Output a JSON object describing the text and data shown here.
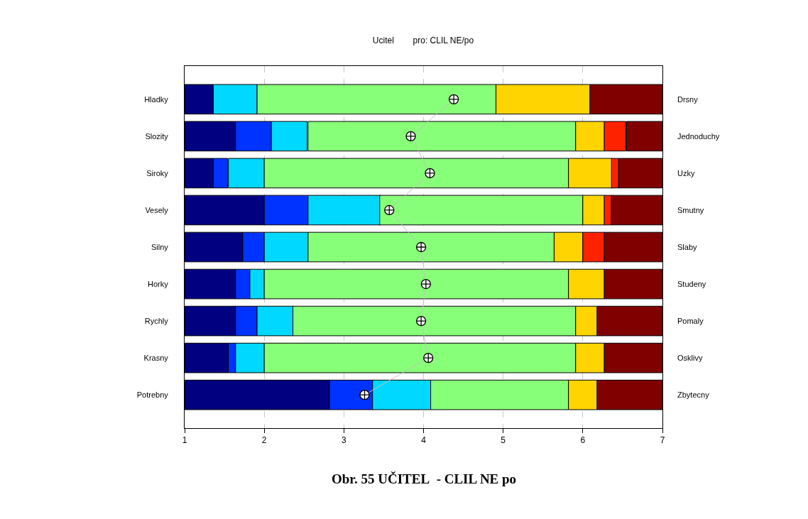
{
  "chart_data": {
    "type": "bar",
    "orientation": "horizontal",
    "title": "Ucitel        pro: CLIL NE/po",
    "categories": [
      "Hladky",
      "Slozity",
      "Siroky",
      "Vesely",
      "Silny",
      "Horky",
      "Rychly",
      "Krasny",
      "Potrebny"
    ],
    "y2_categories": [
      "Drsny",
      "Jednoduchy",
      "Uzky",
      "Smutny",
      "Slaby",
      "Studeny",
      "Pomaly",
      "Osklivy",
      "Zbytecny"
    ],
    "series": [
      {
        "color": "#000080",
        "base": [
          1,
          1,
          1,
          1,
          1,
          1,
          1,
          1,
          1
        ],
        "values": [
          0.36,
          0.64,
          0.36,
          1.0,
          0.73,
          0.64,
          0.64,
          0.55,
          1.82
        ]
      },
      {
        "color": "#0033ff",
        "base": [
          null,
          1.64,
          1.36,
          2.0,
          1.73,
          1.64,
          1.64,
          1.55,
          2.82
        ],
        "values": [
          null,
          0.45,
          0.18,
          0.55,
          0.27,
          0.18,
          0.27,
          0.09,
          0.55
        ]
      },
      {
        "color": "#00d8ff",
        "base": [
          1.36,
          2.09,
          1.55,
          2.55,
          2.0,
          1.82,
          1.91,
          1.64,
          3.36
        ],
        "values": [
          0.55,
          0.45,
          0.45,
          0.91,
          0.55,
          0.18,
          0.45,
          0.36,
          0.73
        ]
      },
      {
        "color": "#88ff78",
        "base": [
          1.91,
          2.55,
          2.0,
          3.45,
          2.55,
          2.0,
          2.36,
          2.0,
          4.09
        ],
        "values": [
          3.0,
          3.36,
          3.82,
          2.55,
          3.09,
          3.82,
          3.55,
          3.91,
          1.73
        ]
      },
      {
        "color": "#ffd400",
        "base": [
          4.91,
          5.91,
          5.82,
          6.0,
          5.64,
          5.82,
          5.91,
          5.91,
          5.82
        ],
        "values": [
          1.18,
          0.36,
          0.55,
          0.27,
          0.36,
          0.45,
          0.27,
          0.36,
          0.36
        ]
      },
      {
        "color": "#ff2200",
        "base": [
          null,
          6.27,
          6.36,
          6.27,
          6.0,
          null,
          null,
          null,
          null
        ],
        "values": [
          null,
          0.27,
          0.09,
          0.09,
          0.27,
          null,
          null,
          null,
          null
        ]
      },
      {
        "color": "#800000",
        "base": [
          6.09,
          6.55,
          6.45,
          6.36,
          6.27,
          6.27,
          6.18,
          6.27,
          6.18
        ],
        "values": [
          0.91,
          0.45,
          0.55,
          0.64,
          0.73,
          0.73,
          0.82,
          0.73,
          0.82
        ]
      },
      {
        "type": "line",
        "color": "#c0c0c0",
        "marker": "cross",
        "values": [
          4.38,
          3.84,
          4.08,
          3.57,
          3.97,
          4.03,
          3.97,
          4.06,
          3.26
        ]
      }
    ],
    "xlim": [
      1,
      7
    ],
    "xticks": [
      1,
      2,
      3,
      4,
      5,
      6,
      7
    ],
    "grid": "x",
    "annotations": [
      "Obr. 55 UČITEL  - CLIL NE po"
    ]
  }
}
